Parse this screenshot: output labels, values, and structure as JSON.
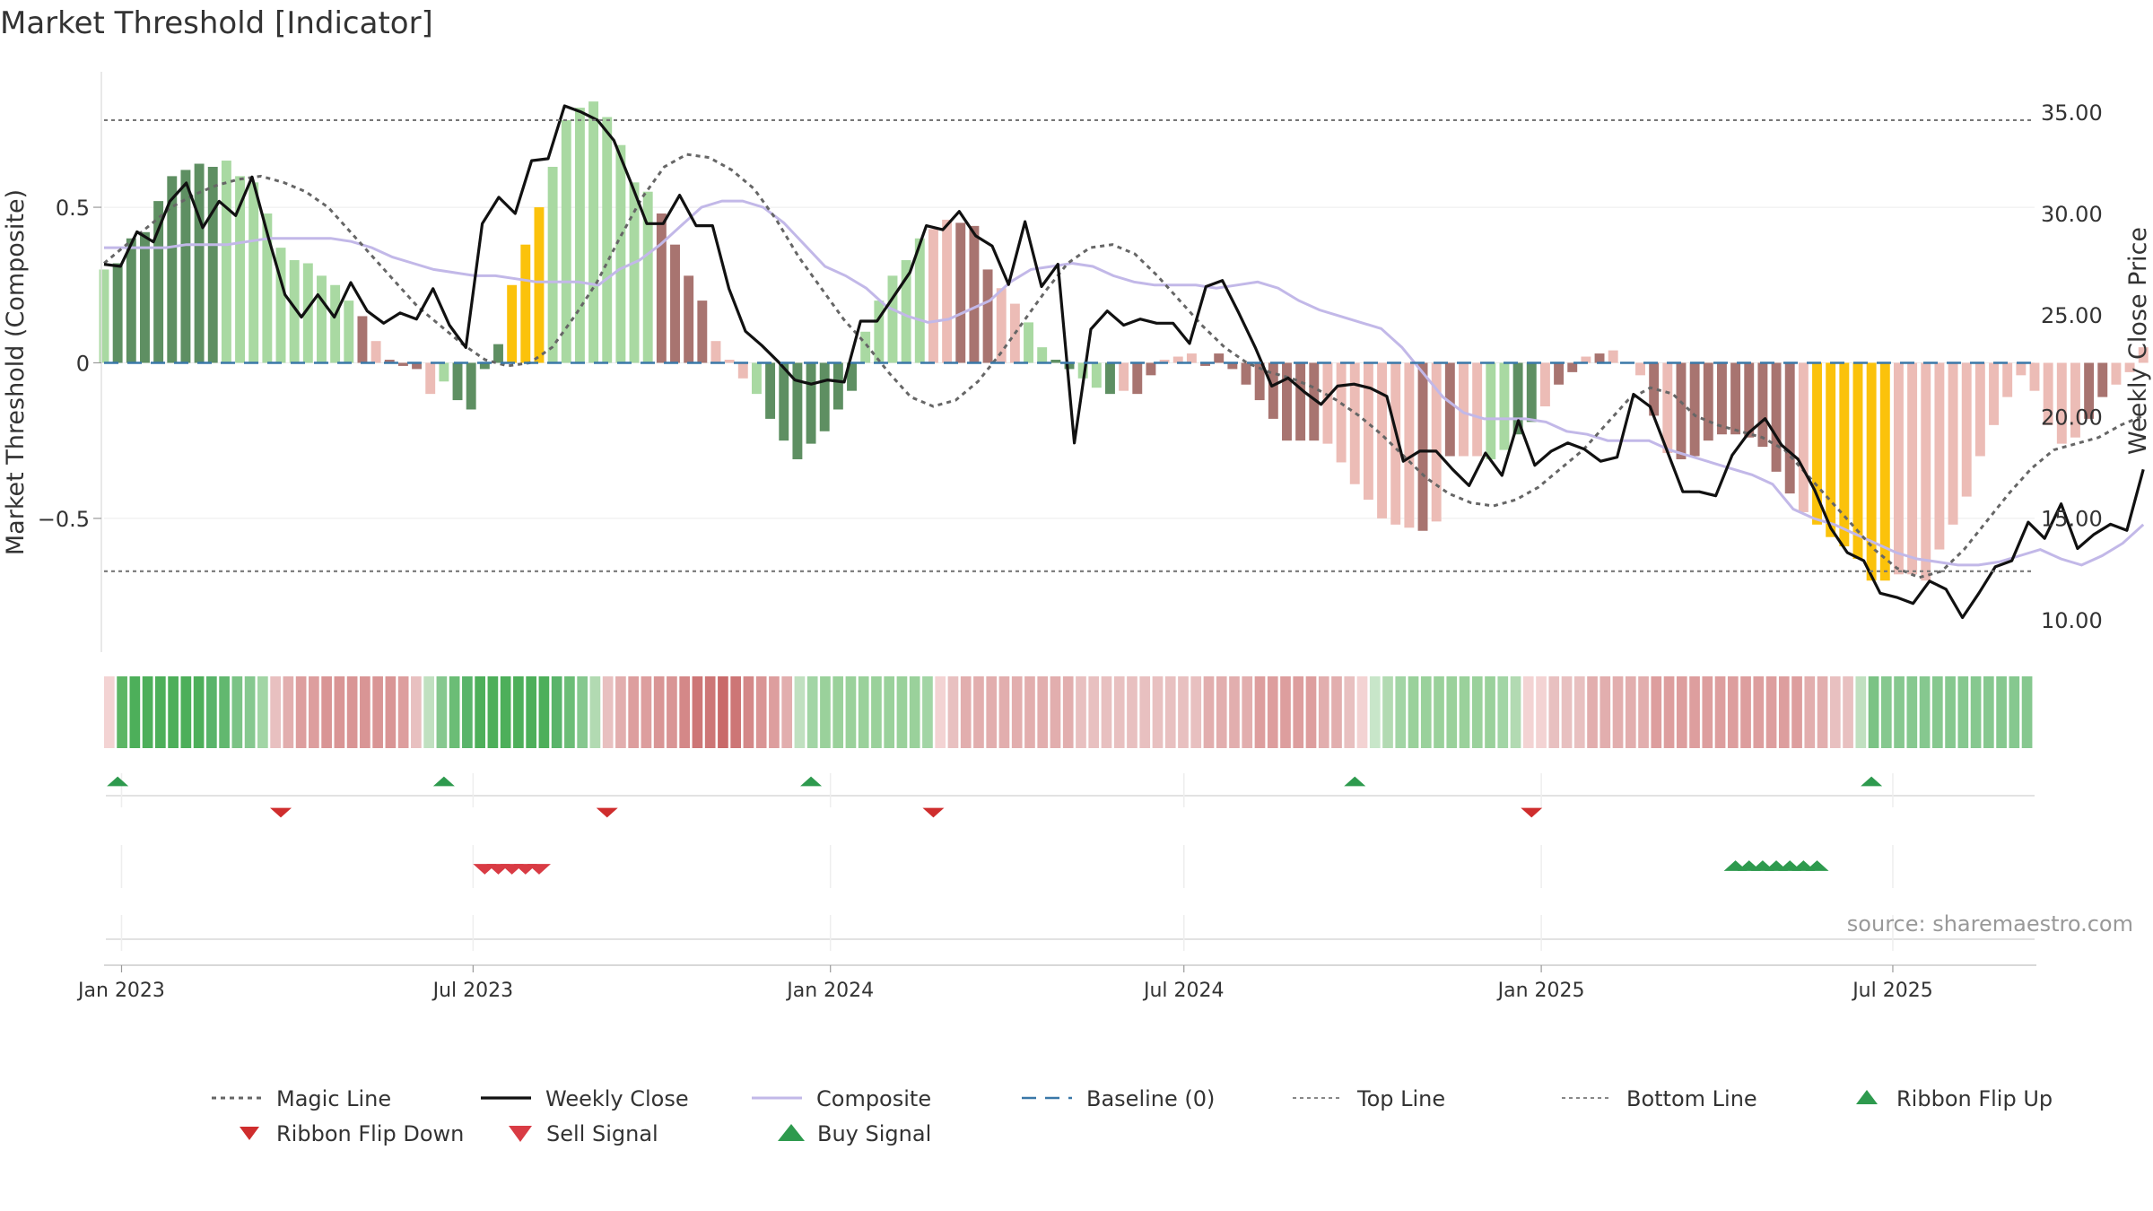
{
  "page": {
    "title": "Market Threshold [Indicator]",
    "source": "source: sharemaestro.com"
  },
  "colors": {
    "dark_green": "#5e8f62",
    "light_green": "#a9d9a2",
    "dark_red": "#a87470",
    "light_red": "#ecbcb6",
    "gold": "#fbc20b",
    "composite": "#c2b8e8",
    "baseline": "#3a78a8",
    "buy": "#2e9a4e",
    "sell": "#d93b44",
    "flip_down": "#cf2d2d",
    "close": "#111111"
  },
  "chart_data": {
    "type": "line",
    "title": "Market Threshold [Indicator]",
    "ylabel_left": "Market Threshold (Composite)",
    "ylabel_right": "Weekly Close Price",
    "ylim_left": [
      -0.93,
      0.95
    ],
    "ylim_right": [
      8.4,
      37.2
    ],
    "yticks_left": [
      {
        "v": 0.5,
        "label": "0.5"
      },
      {
        "v": 0,
        "label": "0"
      },
      {
        "v": -0.5,
        "label": "−0.5"
      }
    ],
    "yticks_right": [
      {
        "v": 35,
        "label": "35.00"
      },
      {
        "v": 30,
        "label": "30.00"
      },
      {
        "v": 25,
        "label": "25.00"
      },
      {
        "v": 20,
        "label": "20.00"
      },
      {
        "v": 15,
        "label": "15.00"
      },
      {
        "v": 10,
        "label": "10.00"
      }
    ],
    "top_line": 0.78,
    "bottom_line": -0.67,
    "x_start": "2022-12-23",
    "x_end": "2025-09-12",
    "xticks": [
      {
        "date": "2023-01-01",
        "label": "Jan 2023"
      },
      {
        "date": "2023-07-01",
        "label": "Jul 2023"
      },
      {
        "date": "2024-01-01",
        "label": "Jan 2024"
      },
      {
        "date": "2024-07-01",
        "label": "Jul 2024"
      },
      {
        "date": "2025-01-01",
        "label": "Jan 2025"
      },
      {
        "date": "2025-07-01",
        "label": "Jul 2025"
      }
    ],
    "weeks_start": "2022-12-23",
    "composite_bars": [
      0.3,
      0.32,
      0.4,
      0.42,
      0.52,
      0.6,
      0.62,
      0.64,
      0.63,
      0.65,
      0.6,
      0.58,
      0.48,
      0.37,
      0.33,
      0.32,
      0.28,
      0.25,
      0.2,
      0.15,
      0.07,
      0.01,
      -0.01,
      -0.02,
      -0.1,
      -0.06,
      -0.12,
      -0.15,
      -0.02,
      0.06,
      0.25,
      0.38,
      0.5,
      0.63,
      0.78,
      0.82,
      0.84,
      0.79,
      0.7,
      0.58,
      0.55,
      0.48,
      0.38,
      0.28,
      0.2,
      0.07,
      0.01,
      -0.05,
      -0.1,
      -0.18,
      -0.25,
      -0.31,
      -0.26,
      -0.22,
      -0.15,
      -0.09,
      0.1,
      0.2,
      0.28,
      0.33,
      0.4,
      0.43,
      0.46,
      0.45,
      0.44,
      0.3,
      0.24,
      0.19,
      0.13,
      0.05,
      0.01,
      -0.02,
      -0.05,
      -0.08,
      -0.1,
      -0.09,
      -0.1,
      -0.04,
      0.01,
      0.02,
      0.03,
      -0.01,
      0.03,
      -0.02,
      -0.07,
      -0.12,
      -0.18,
      -0.25,
      -0.25,
      -0.25,
      -0.26,
      -0.32,
      -0.39,
      -0.44,
      -0.5,
      -0.52,
      -0.53,
      -0.54,
      -0.51,
      -0.3,
      -0.3,
      -0.3,
      -0.31,
      -0.28,
      -0.23,
      -0.19,
      -0.14,
      -0.07,
      -0.03,
      0.02,
      0.03,
      0.04,
      0,
      -0.04,
      -0.17,
      -0.29,
      -0.31,
      -0.3,
      -0.25,
      -0.23,
      -0.23,
      -0.24,
      -0.27,
      -0.35,
      -0.42,
      -0.48,
      -0.52,
      -0.56,
      -0.59,
      -0.63,
      -0.7,
      -0.7,
      -0.68,
      -0.68,
      -0.7,
      -0.6,
      -0.52,
      -0.43,
      -0.3,
      -0.2,
      -0.11,
      -0.04,
      -0.09,
      -0.2,
      -0.26,
      -0.24,
      -0.18,
      -0.11,
      -0.07,
      -0.03,
      0.05
    ],
    "bar_color_codes": "LDDDDDDDDLLLLLLLLLLRrRRRrLDDDDGGGLLLLLLLLRRRRrrrLDDDDDDDLLLLLrrRRRrrLLDDLLDrRRrrrRRRRRRRRRrrrrrrrRrRrrLLDDrRRrRrrrRrRRRRRRRRRrGGGGGGrrrrrrrrrrrrrrRRrrrD",
    "weekly_close": [
      27.5,
      27.4,
      29.1,
      28.6,
      30.6,
      31.5,
      29.3,
      30.6,
      29.9,
      31.8,
      28.8,
      26,
      24.9,
      26,
      24.9,
      26.6,
      25.2,
      24.6,
      25.1,
      24.8,
      26.3,
      24.5,
      23.4,
      29.5,
      30.8,
      30,
      32.6,
      32.7,
      35.3,
      35,
      34.6,
      33.6,
      31.6,
      29.5,
      29.5,
      30.9,
      29.4,
      29.4,
      26.3,
      24.2,
      23.5,
      22.7,
      21.8,
      21.6,
      21.8,
      21.7,
      24.7,
      24.7,
      25.9,
      27.1,
      29.4,
      29.2,
      30.1,
      28.9,
      28.4,
      26.5,
      29.6,
      26.4,
      27.5,
      18.7,
      24.3,
      25.2,
      24.5,
      24.8,
      24.6,
      24.6,
      23.6,
      26.4,
      26.7,
      25.1,
      23.4,
      21.5,
      21.9,
      21.2,
      20.6,
      21.5,
      21.6,
      21.4,
      21,
      17.8,
      18.3,
      18.3,
      17.4,
      16.6,
      18.2,
      17.1,
      19.8,
      17.6,
      18.3,
      18.7,
      18.4,
      17.8,
      18,
      21.1,
      20.5,
      18.4,
      16.3,
      16.3,
      16.1,
      18.1,
      19.2,
      19.9,
      18.6,
      17.9,
      16.4,
      14.5,
      13.3,
      12.9,
      11.3,
      11.1,
      10.8,
      11.9,
      11.5,
      10.1,
      11.3,
      12.6,
      12.9,
      14.8,
      14,
      15.7,
      13.5,
      14.2,
      14.7,
      14.4,
      17.4
    ],
    "composite_line": [
      0.37,
      0.37,
      0.37,
      0.37,
      0.38,
      0.38,
      0.38,
      0.39,
      0.4,
      0.4,
      0.4,
      0.4,
      0.39,
      0.37,
      0.34,
      0.32,
      0.3,
      0.29,
      0.28,
      0.28,
      0.27,
      0.26,
      0.26,
      0.26,
      0.25,
      0.3,
      0.33,
      0.38,
      0.44,
      0.5,
      0.52,
      0.52,
      0.5,
      0.45,
      0.38,
      0.31,
      0.28,
      0.24,
      0.18,
      0.15,
      0.13,
      0.14,
      0.17,
      0.2,
      0.26,
      0.3,
      0.31,
      0.32,
      0.31,
      0.28,
      0.26,
      0.25,
      0.25,
      0.25,
      0.24,
      0.25,
      0.26,
      0.24,
      0.2,
      0.17,
      0.15,
      0.13,
      0.11,
      0.05,
      -0.03,
      -0.11,
      -0.16,
      -0.18,
      -0.18,
      -0.18,
      -0.19,
      -0.22,
      -0.23,
      -0.25,
      -0.25,
      -0.25,
      -0.28,
      -0.3,
      -0.32,
      -0.34,
      -0.36,
      -0.39,
      -0.47,
      -0.5,
      -0.52,
      -0.55,
      -0.58,
      -0.61,
      -0.63,
      -0.64,
      -0.65,
      -0.65,
      -0.64,
      -0.62,
      -0.6,
      -0.63,
      -0.65,
      -0.62,
      -0.58,
      -0.52
    ],
    "composite_line_start_week": 0,
    "magic_line": [
      0.32,
      0.38,
      0.44,
      0.5,
      0.54,
      0.57,
      0.59,
      0.6,
      0.58,
      0.55,
      0.5,
      0.42,
      0.34,
      0.26,
      0.18,
      0.12,
      0.06,
      0.01,
      -0.01,
      0,
      0.05,
      0.15,
      0.26,
      0.4,
      0.53,
      0.63,
      0.67,
      0.66,
      0.62,
      0.56,
      0.46,
      0.34,
      0.24,
      0.14,
      0.06,
      -0.03,
      -0.11,
      -0.14,
      -0.12,
      -0.06,
      0.03,
      0.13,
      0.23,
      0.32,
      0.37,
      0.38,
      0.35,
      0.28,
      0.2,
      0.12,
      0.05,
      0,
      -0.03,
      -0.05,
      -0.08,
      -0.12,
      -0.17,
      -0.23,
      -0.3,
      -0.37,
      -0.42,
      -0.45,
      -0.46,
      -0.44,
      -0.4,
      -0.34,
      -0.28,
      -0.2,
      -0.12,
      -0.08,
      -0.1,
      -0.17,
      -0.2,
      -0.22,
      -0.24,
      -0.28,
      -0.36,
      -0.44,
      -0.52,
      -0.6,
      -0.66,
      -0.69,
      -0.67,
      -0.6,
      -0.51,
      -0.42,
      -0.34,
      -0.28,
      -0.26,
      -0.24,
      -0.2,
      -0.17
    ],
    "magic_line_start_week": 0,
    "ribbon_colors": [
      "#f3d3d3",
      "#5cb665",
      "#4daf5a",
      "#4daf5a",
      "#4daf5a",
      "#4daf5a",
      "#4daf5a",
      "#4daf5a",
      "#59b46a",
      "#62b86f",
      "#7bc385",
      "#86c88f",
      "#a2d5a5",
      "#e8c0c0",
      "#e2aeae",
      "#dd9e9e",
      "#dd9e9e",
      "#d99595",
      "#d99595",
      "#d99595",
      "#d99595",
      "#d99595",
      "#d99595",
      "#dd9e9e",
      "#e8c0c0",
      "#c0e0c0",
      "#86c88f",
      "#6bbd76",
      "#59b46a",
      "#4daf5a",
      "#4daf5a",
      "#4daf5a",
      "#4daf5a",
      "#4daf5a",
      "#4daf5a",
      "#59b46a",
      "#6bbd76",
      "#86c88f",
      "#b2dab2",
      "#e8c0c0",
      "#e2aeae",
      "#dd9e9e",
      "#dd9e9e",
      "#d99595",
      "#d99595",
      "#d48888",
      "#cd7676",
      "#cd7676",
      "#c96a6a",
      "#cd7676",
      "#d48888",
      "#d99595",
      "#dd9e9e",
      "#e2aeae",
      "#c0e0c0",
      "#a2d5a5",
      "#9ad19b",
      "#9ad19b",
      "#9ad19b",
      "#9ad19b",
      "#9ad19b",
      "#9ad19b",
      "#9ad19b",
      "#9ad19b",
      "#a2d5a5",
      "#f3d3d3",
      "#e8c0c0",
      "#e2aeae",
      "#e2aeae",
      "#e2aeae",
      "#e2aeae",
      "#e2aeae",
      "#e2aeae",
      "#e2aeae",
      "#e2aeae",
      "#e2aeae",
      "#e8c0c0",
      "#e8c0c0",
      "#e8c0c0",
      "#e8c0c0",
      "#e8c0c0",
      "#e8c0c0",
      "#e8c0c0",
      "#e8c0c0",
      "#e8c0c0",
      "#e8c0c0",
      "#e2aeae",
      "#e2aeae",
      "#e2aeae",
      "#e2aeae",
      "#dd9e9e",
      "#dd9e9e",
      "#dd9e9e",
      "#dd9e9e",
      "#dd9e9e",
      "#e2aeae",
      "#e2aeae",
      "#e8c0c0",
      "#f3d3d3",
      "#c8e6c9",
      "#b2dab2",
      "#a2d5a5",
      "#9ad19b",
      "#9ad19b",
      "#9ad19b",
      "#9ad19b",
      "#9ad19b",
      "#9ad19b",
      "#9ad19b",
      "#a2d5a5",
      "#b2dab2",
      "#f3d3d3",
      "#f3d3d3",
      "#e8c0c0",
      "#e8c0c0",
      "#e8c0c0",
      "#e2aeae",
      "#e2aeae",
      "#e2aeae",
      "#e2aeae",
      "#e2aeae",
      "#dd9e9e",
      "#dd9e9e",
      "#dd9e9e",
      "#dd9e9e",
      "#dd9e9e",
      "#dd9e9e",
      "#dd9e9e",
      "#dd9e9e",
      "#dd9e9e",
      "#dd9e9e",
      "#dd9e9e",
      "#dd9e9e",
      "#e2aeae",
      "#e2aeae",
      "#e8c0c0",
      "#e8c0c0",
      "#c0e0c0",
      "#7bc385",
      "#86c88f",
      "#86c88f",
      "#86c88f",
      "#86c88f",
      "#86c88f",
      "#86c88f",
      "#86c88f",
      "#86c88f",
      "#86c88f",
      "#86c88f",
      "#86c88f",
      "#86c88f"
    ],
    "ribbon_flip_up_dates": [
      "2022-12-30",
      "2023-06-16",
      "2023-12-22",
      "2024-09-27",
      "2025-06-20"
    ],
    "ribbon_flip_down_dates": [
      "2023-03-24",
      "2023-09-08",
      "2024-02-23",
      "2024-12-27"
    ],
    "sell_signal_dates": [
      "2023-07-07",
      "2023-07-14",
      "2023-07-21",
      "2023-07-28",
      "2023-08-04"
    ],
    "buy_signal_dates": [
      "2025-04-11",
      "2025-04-18",
      "2025-04-25",
      "2025-05-02",
      "2025-05-09",
      "2025-05-16",
      "2025-05-23"
    ],
    "legend": {
      "row1": [
        "Magic Line",
        "Weekly Close",
        "Composite",
        "Baseline (0)",
        "Top Line",
        "Bottom Line",
        "Ribbon Flip Up"
      ],
      "row2": [
        "Ribbon Flip Down",
        "Sell Signal",
        "Buy Signal"
      ]
    },
    "grid": true,
    "legend_placement": "bottom"
  }
}
